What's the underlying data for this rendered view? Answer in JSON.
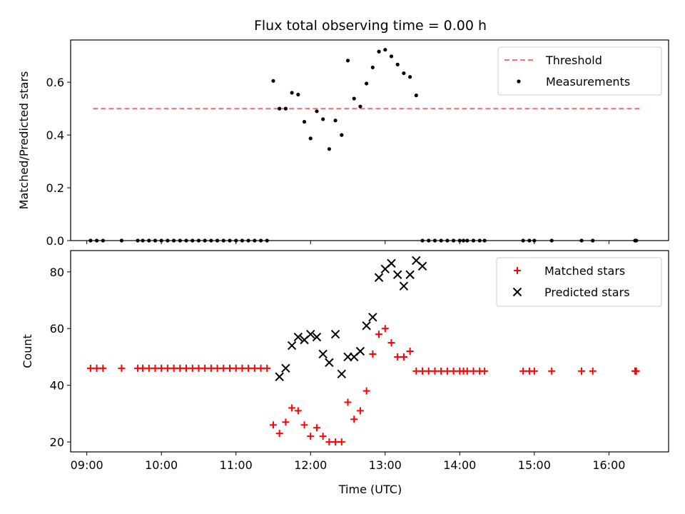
{
  "chart_data": {
    "type": "scatter",
    "title": "Flux total observing time = 0.00 h",
    "xlabel": "Time (UTC)",
    "x_ticks": [
      "09:00",
      "10:00",
      "11:00",
      "12:00",
      "13:00",
      "14:00",
      "15:00",
      "16:00"
    ],
    "panels": [
      {
        "ylabel": "Matched/Predicted stars",
        "ylim": [
          0,
          0.76
        ],
        "y_ticks": [
          "0.0",
          "0.2",
          "0.4",
          "0.6"
        ],
        "legend": {
          "position": "upper right"
        },
        "series": [
          {
            "name": "Threshold",
            "style": "dashed-line",
            "color": "#ff7070",
            "x": [
              "09:05",
              "16:25"
            ],
            "y": [
              0.5,
              0.5
            ]
          },
          {
            "name": "Measurements",
            "style": "dot",
            "color": "#000000",
            "x": [
              "09:03",
              "09:08",
              "09:13",
              "09:28",
              "09:41",
              "09:45",
              "09:50",
              "09:55",
              "10:00",
              "10:05",
              "10:10",
              "10:15",
              "10:20",
              "10:25",
              "10:30",
              "10:35",
              "10:40",
              "10:45",
              "10:50",
              "10:55",
              "11:00",
              "11:05",
              "11:10",
              "11:15",
              "11:20",
              "11:25",
              "11:30",
              "11:35",
              "11:40",
              "11:45",
              "11:50",
              "11:55",
              "12:00",
              "12:05",
              "12:10",
              "12:15",
              "12:20",
              "12:25",
              "12:30",
              "12:35",
              "12:40",
              "12:45",
              "12:50",
              "12:55",
              "13:00",
              "13:05",
              "13:10",
              "13:15",
              "13:20",
              "13:25",
              "13:30",
              "13:35",
              "13:40",
              "13:45",
              "13:50",
              "13:55",
              "14:00",
              "14:03",
              "14:06",
              "14:11",
              "14:16",
              "14:20",
              "14:51",
              "14:56",
              "15:00",
              "15:14",
              "15:38",
              "15:47",
              "16:21",
              "16:22"
            ],
            "y": [
              0,
              0,
              0,
              0,
              0,
              0,
              0,
              0,
              0,
              0,
              0,
              0,
              0,
              0,
              0,
              0,
              0,
              0,
              0,
              0,
              0,
              0,
              0,
              0,
              0,
              0,
              0.605,
              0.5,
              0.5,
              0.56,
              0.553,
              0.45,
              0.387,
              0.49,
              0.46,
              0.347,
              0.455,
              0.4,
              0.682,
              0.538,
              0.508,
              0.595,
              0.656,
              0.716,
              0.723,
              0.698,
              0.667,
              0.634,
              0.62,
              0.55,
              0,
              0,
              0,
              0,
              0,
              0,
              0,
              0,
              0,
              0,
              0,
              0,
              0,
              0,
              0,
              0,
              0,
              0,
              0,
              0
            ]
          }
        ]
      },
      {
        "ylabel": "Count",
        "ylim": [
          16.5,
          87.5
        ],
        "y_ticks": [
          "20",
          "40",
          "60",
          "80"
        ],
        "legend": {
          "position": "upper right"
        },
        "series": [
          {
            "name": "Matched stars",
            "style": "plus",
            "color": "#ff0000",
            "x": [
              "09:03",
              "09:08",
              "09:13",
              "09:28",
              "09:41",
              "09:45",
              "09:50",
              "09:55",
              "10:00",
              "10:05",
              "10:10",
              "10:15",
              "10:20",
              "10:25",
              "10:30",
              "10:35",
              "10:40",
              "10:45",
              "10:50",
              "10:55",
              "11:00",
              "11:05",
              "11:10",
              "11:15",
              "11:20",
              "11:25",
              "11:30",
              "11:35",
              "11:40",
              "11:45",
              "11:50",
              "11:55",
              "12:00",
              "12:05",
              "12:10",
              "12:15",
              "12:20",
              "12:25",
              "12:30",
              "12:35",
              "12:40",
              "12:45",
              "12:50",
              "12:55",
              "13:00",
              "13:05",
              "13:10",
              "13:15",
              "13:20",
              "13:25",
              "13:30",
              "13:35",
              "13:40",
              "13:45",
              "13:50",
              "13:55",
              "14:00",
              "14:03",
              "14:06",
              "14:11",
              "14:16",
              "14:20",
              "14:51",
              "14:56",
              "15:00",
              "15:14",
              "15:38",
              "15:47",
              "16:21",
              "16:22"
            ],
            "y": [
              46,
              46,
              46,
              46,
              46,
              46,
              46,
              46,
              46,
              46,
              46,
              46,
              46,
              46,
              46,
              46,
              46,
              46,
              46,
              46,
              46,
              46,
              46,
              46,
              46,
              46,
              26,
              23,
              27,
              32,
              31,
              26,
              22,
              25,
              22,
              20,
              20,
              20,
              34,
              28,
              31,
              38,
              51,
              58,
              60,
              55,
              50,
              50,
              52,
              45,
              45,
              45,
              45,
              45,
              45,
              45,
              45,
              45,
              45,
              45,
              45,
              45,
              45,
              45,
              45,
              45,
              45,
              45,
              45,
              45
            ]
          },
          {
            "name": "Predicted stars",
            "style": "x",
            "color": "#000000",
            "x": [
              "11:35",
              "11:40",
              "11:45",
              "11:50",
              "11:55",
              "12:00",
              "12:05",
              "12:10",
              "12:15",
              "12:20",
              "12:25",
              "12:30",
              "12:35",
              "12:40",
              "12:45",
              "12:50",
              "12:55",
              "13:00",
              "13:05",
              "13:10",
              "13:15",
              "13:20",
              "13:25",
              "13:30"
            ],
            "y": [
              43,
              46,
              54,
              57,
              56,
              58,
              57,
              51,
              48,
              58,
              44,
              50,
              50,
              52,
              61,
              64,
              78,
              81,
              83,
              79,
              75,
              79,
              84,
              82
            ]
          }
        ]
      }
    ]
  }
}
